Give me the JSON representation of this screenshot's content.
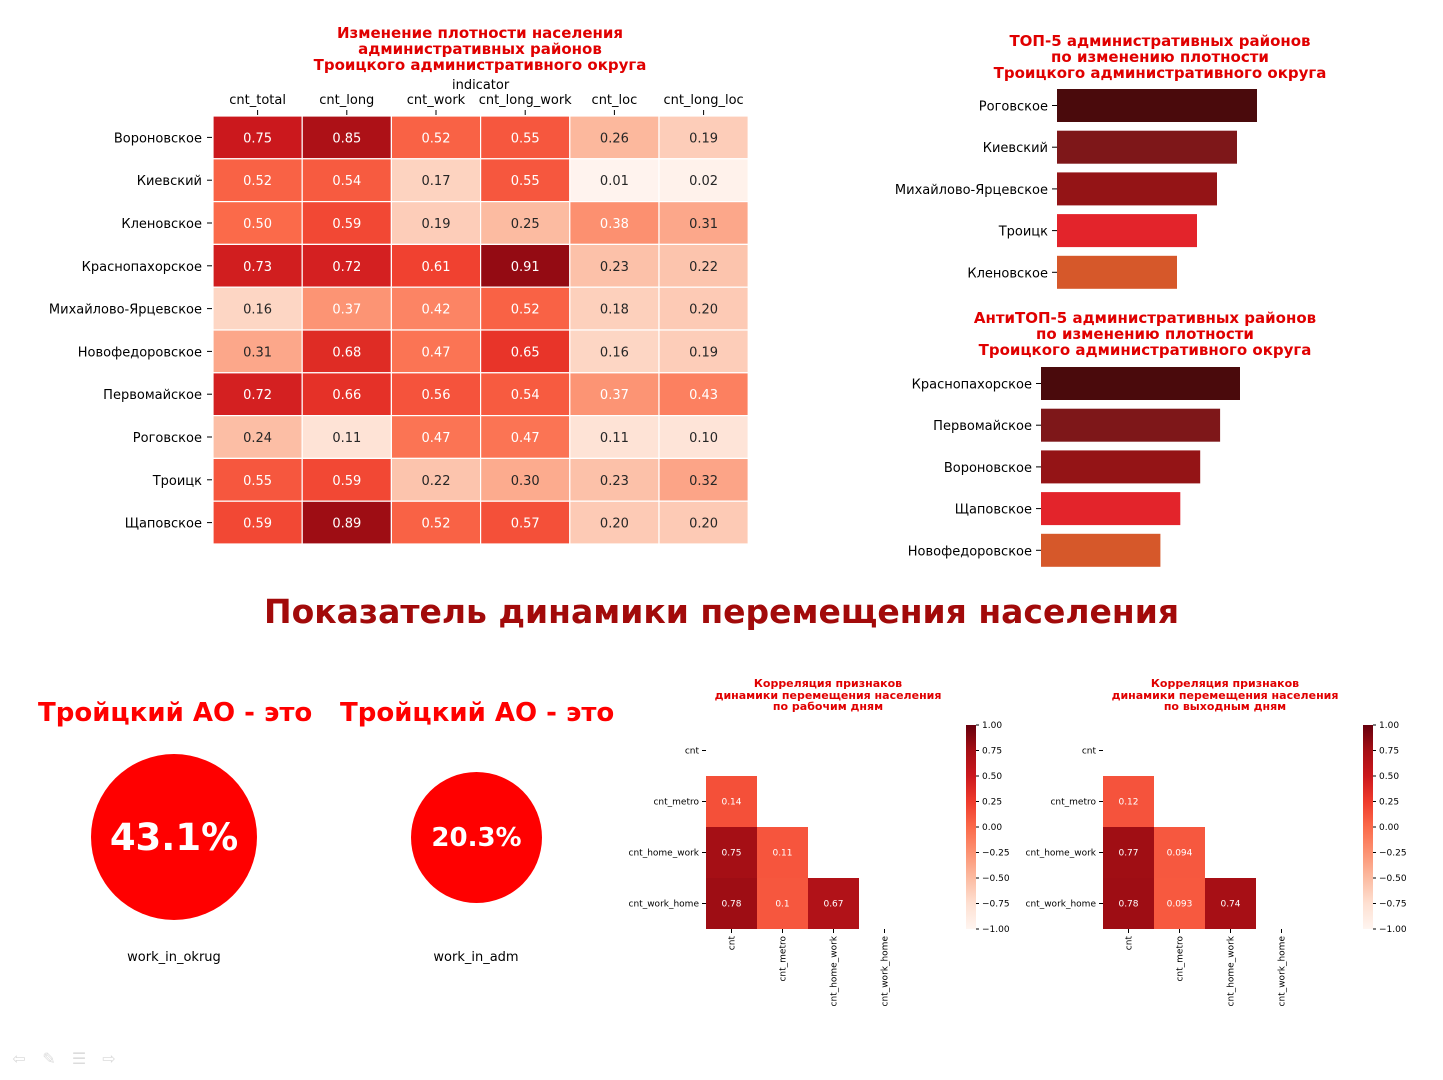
{
  "heatmap": {
    "title_lines": [
      "Изменение плотности населения",
      "административных районов",
      "Троицкого административного округа"
    ],
    "column_axis_label": "indicator",
    "columns": [
      "cnt_total",
      "cnt_long",
      "cnt_work",
      "cnt_long_work",
      "cnt_loc",
      "cnt_long_loc"
    ],
    "rows": [
      "Вороновское",
      "Киевский",
      "Кленовское",
      "Краснопахорское",
      "Михайлово-Ярцевское",
      "Новофедоровское",
      "Первомайское",
      "Роговское",
      "Троицк",
      "Щаповское"
    ]
  },
  "top5": {
    "title_lines": [
      "ТОП-5 административных районов",
      "по изменению плотности",
      "Троицкого административного округа"
    ]
  },
  "anti_top5": {
    "title_lines": [
      "АнтиТОП-5 административных районов",
      "по изменению плотности",
      "Троицкого административного округа"
    ]
  },
  "main_heading": "Показатель динамики перемещения населения",
  "kpis": [
    {
      "heading": "Тройцкий АО - это",
      "value": "43.1%",
      "label": "work_in_okrug"
    },
    {
      "heading": "Тройцкий АО - это",
      "value": "20.3%",
      "label": "work_in_adm"
    }
  ],
  "corr_weekday": {
    "title_lines": [
      "Корреляция признаков",
      "динамики перемещения населения",
      "по рабочим дням"
    ]
  },
  "corr_weekend": {
    "title_lines": [
      "Корреляция признаков",
      "динамики перемещения населения",
      "по выходным дням"
    ]
  },
  "colors": {
    "title_red": "#e00000",
    "heading_dark_red": "#a20a0a",
    "kpi_red": "#ff0000",
    "bar_colors": [
      "#4a0a0c",
      "#7e1719",
      "#941416",
      "#e3242b",
      "#d6582a"
    ]
  },
  "chart_data": [
    {
      "type": "heatmap",
      "title": "Изменение плотности населения административных районов Троицкого административного округа",
      "x_label": "indicator",
      "x": [
        "cnt_total",
        "cnt_long",
        "cnt_work",
        "cnt_long_work",
        "cnt_loc",
        "cnt_long_loc"
      ],
      "y": [
        "Вороновское",
        "Киевский",
        "Кленовское",
        "Краснопахорское",
        "Михайлово-Ярцевское",
        "Новофедоровское",
        "Первомайское",
        "Роговское",
        "Троицк",
        "Щаповское"
      ],
      "values": [
        [
          0.75,
          0.85,
          0.52,
          0.55,
          0.26,
          0.19
        ],
        [
          0.52,
          0.54,
          0.17,
          0.55,
          0.01,
          0.02
        ],
        [
          0.5,
          0.59,
          0.19,
          0.25,
          0.38,
          0.31
        ],
        [
          0.73,
          0.72,
          0.61,
          0.91,
          0.23,
          0.22
        ],
        [
          0.16,
          0.37,
          0.42,
          0.52,
          0.18,
          0.2
        ],
        [
          0.31,
          0.68,
          0.47,
          0.65,
          0.16,
          0.19
        ],
        [
          0.72,
          0.66,
          0.56,
          0.54,
          0.37,
          0.43
        ],
        [
          0.24,
          0.11,
          0.47,
          0.47,
          0.11,
          0.1
        ],
        [
          0.55,
          0.59,
          0.22,
          0.3,
          0.23,
          0.32
        ],
        [
          0.59,
          0.89,
          0.52,
          0.57,
          0.2,
          0.2
        ]
      ],
      "color_range": [
        0,
        1
      ],
      "colormap": "Reds",
      "annotated": true
    },
    {
      "type": "bar",
      "orientation": "horizontal",
      "title": "ТОП-5 административных районов по изменению плотности Троицкого административного округа",
      "categories": [
        "Роговское",
        "Киевский",
        "Михайлово-Ярцевское",
        "Троицк",
        "Кленовское"
      ],
      "values": [
        1.0,
        0.9,
        0.8,
        0.7,
        0.6
      ],
      "bar_colors": [
        "#4a0a0c",
        "#7e1719",
        "#941416",
        "#e3242b",
        "#d6582a"
      ],
      "axes_visible": false
    },
    {
      "type": "bar",
      "orientation": "horizontal",
      "title": "АнтиТОП-5 административных районов по изменению плотности Троицкого административного округа",
      "categories": [
        "Краснопахорское",
        "Первомайское",
        "Вороновское",
        "Щаповское",
        "Новофедоровское"
      ],
      "values": [
        1.0,
        0.9,
        0.8,
        0.7,
        0.6
      ],
      "bar_colors": [
        "#4a0a0c",
        "#7e1719",
        "#941416",
        "#e3242b",
        "#d6582a"
      ],
      "axes_visible": false
    },
    {
      "type": "heatmap",
      "title": "Корреляция признаков динамики перемещения населения по рабочим дням",
      "variables": [
        "cnt",
        "cnt_metro",
        "cnt_home_work",
        "cnt_work_home"
      ],
      "lower_triangle": [
        [
          "0.14",
          null,
          null
        ],
        [
          "0.75",
          "0.11",
          null
        ],
        [
          "0.78",
          "0.1",
          "0.67"
        ]
      ],
      "color_range": [
        -1,
        1
      ],
      "colorbar_ticks": [
        "1.00",
        "0.75",
        "0.50",
        "0.25",
        "0.00",
        "−0.25",
        "−0.50",
        "−0.75",
        "−1.00"
      ]
    },
    {
      "type": "heatmap",
      "title": "Корреляция признаков динамики перемещения населения по выходным дням",
      "variables": [
        "cnt",
        "cnt_metro",
        "cnt_home_work",
        "cnt_work_home"
      ],
      "lower_triangle": [
        [
          "0.12",
          null,
          null
        ],
        [
          "0.77",
          "0.094",
          null
        ],
        [
          "0.78",
          "0.093",
          "0.74"
        ]
      ],
      "color_range": [
        -1,
        1
      ],
      "colorbar_ticks": [
        "1.00",
        "0.75",
        "0.50",
        "0.25",
        "0.00",
        "−0.25",
        "−0.50",
        "−0.75",
        "−1.00"
      ]
    }
  ]
}
